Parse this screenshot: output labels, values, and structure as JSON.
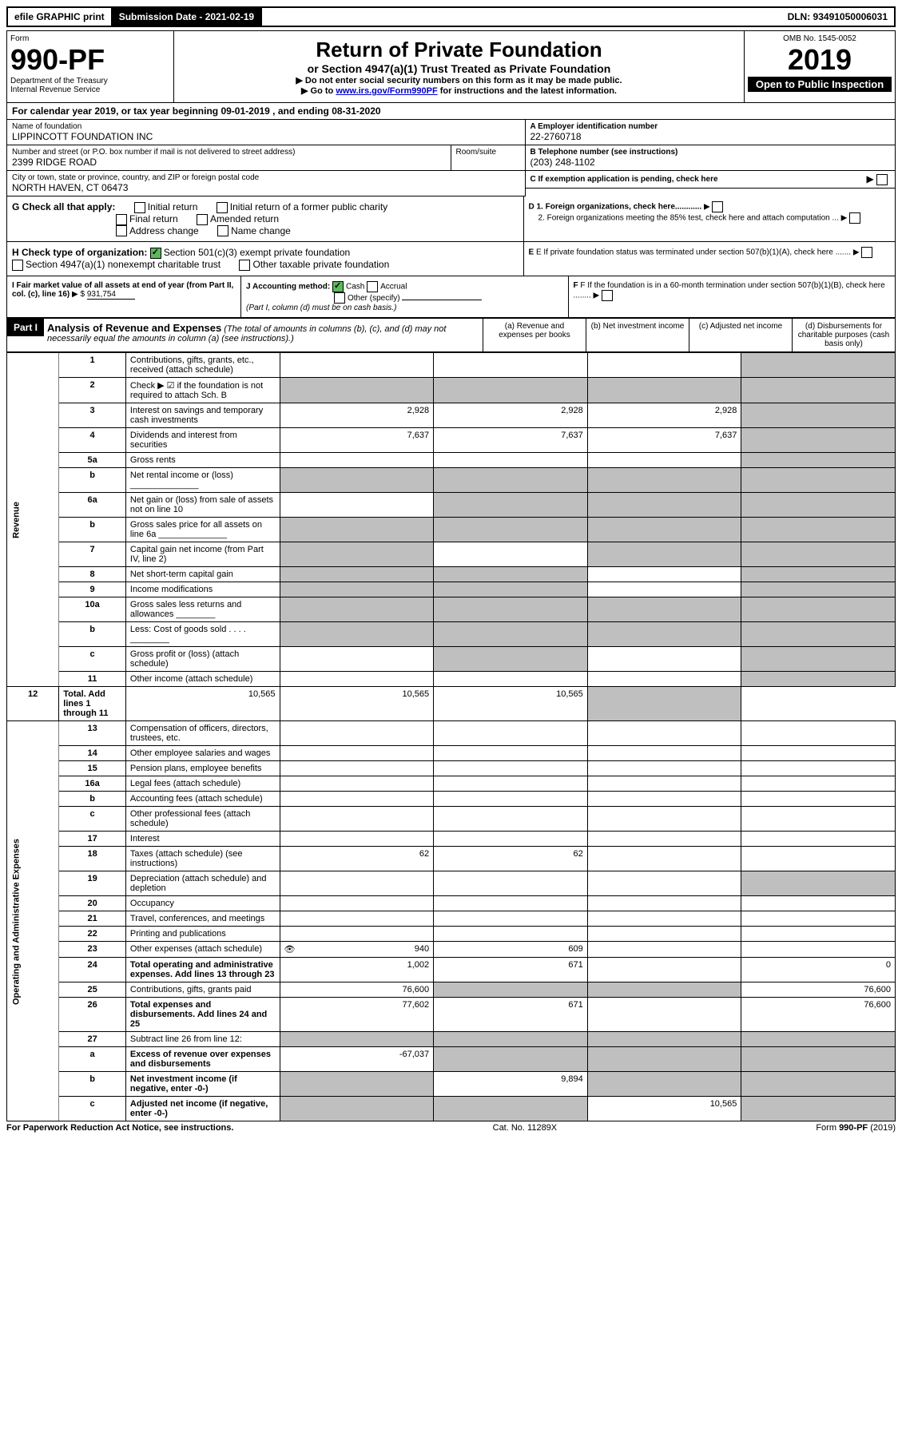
{
  "topbar": {
    "efile": "efile GRAPHIC print",
    "submission_label": "Submission Date - 2021-02-19",
    "dln_label": "DLN: 93491050006031"
  },
  "header": {
    "form_label": "Form",
    "form_number": "990-PF",
    "dept": "Department of the Treasury",
    "irs": "Internal Revenue Service",
    "title": "Return of Private Foundation",
    "subtitle": "or Section 4947(a)(1) Trust Treated as Private Foundation",
    "note1": "▶ Do not enter social security numbers on this form as it may be made public.",
    "note2_prefix": "▶ Go to ",
    "note2_link": "www.irs.gov/Form990PF",
    "note2_suffix": " for instructions and the latest information.",
    "omb": "OMB No. 1545-0052",
    "year": "2019",
    "open": "Open to Public Inspection"
  },
  "period": {
    "text_prefix": "For calendar year 2019, or tax year beginning ",
    "begin": "09-01-2019",
    "text_mid": " , and ending ",
    "end": "08-31-2020"
  },
  "ident": {
    "name_label": "Name of foundation",
    "name": "LIPPINCOTT FOUNDATION INC",
    "ein_label": "A Employer identification number",
    "ein": "22-2760718",
    "addr_label": "Number and street (or P.O. box number if mail is not delivered to street address)",
    "addr": "2399 RIDGE ROAD",
    "room_label": "Room/suite",
    "phone_label": "B Telephone number (see instructions)",
    "phone": "(203) 248-1102",
    "city_label": "City or town, state or province, country, and ZIP or foreign postal code",
    "city": "NORTH HAVEN, CT  06473",
    "c_label": "C If exemption application is pending, check here"
  },
  "checks": {
    "g_label": "G Check all that apply:",
    "g_items": [
      "Initial return",
      "Initial return of a former public charity",
      "Final return",
      "Amended return",
      "Address change",
      "Name change"
    ],
    "d1": "D 1. Foreign organizations, check here............",
    "d2": "2. Foreign organizations meeting the 85% test, check here and attach computation ...",
    "h_label": "H Check type of organization:",
    "h_501c3": "Section 501(c)(3) exempt private foundation",
    "h_4947": "Section 4947(a)(1) nonexempt charitable trust",
    "h_other": "Other taxable private foundation",
    "e_label": "E If private foundation status was terminated under section 507(b)(1)(A), check here .......",
    "i_label": "I Fair market value of all assets at end of year (from Part II, col. (c), line 16)",
    "i_value": "931,754",
    "j_label": "J Accounting method:",
    "j_cash": "Cash",
    "j_accrual": "Accrual",
    "j_other": "Other (specify)",
    "j_note": "(Part I, column (d) must be on cash basis.)",
    "f_label": "F If the foundation is in a 60-month termination under section 507(b)(1)(B), check here ........"
  },
  "part1": {
    "label": "Part I",
    "title": "Analysis of Revenue and Expenses",
    "title_note": "(The total of amounts in columns (b), (c), and (d) may not necessarily equal the amounts in column (a) (see instructions).)",
    "col_a": "(a) Revenue and expenses per books",
    "col_b": "(b) Net investment income",
    "col_c": "(c) Adjusted net income",
    "col_d": "(d) Disbursements for charitable purposes (cash basis only)"
  },
  "sections": {
    "revenue": "Revenue",
    "expenses": "Operating and Administrative Expenses"
  },
  "lines": [
    {
      "no": "1",
      "desc": "Contributions, gifts, grants, etc., received (attach schedule)",
      "a": "",
      "b": "",
      "c": "",
      "d": "",
      "d_shade": true
    },
    {
      "no": "2",
      "desc": "Check ▶ ☑ if the foundation is not required to attach Sch. B",
      "a_shade": true,
      "b_shade": true,
      "c_shade": true,
      "d_shade": true
    },
    {
      "no": "3",
      "desc": "Interest on savings and temporary cash investments",
      "a": "2,928",
      "b": "2,928",
      "c": "2,928",
      "d_shade": true
    },
    {
      "no": "4",
      "desc": "Dividends and interest from securities",
      "a": "7,637",
      "b": "7,637",
      "c": "7,637",
      "d_shade": true
    },
    {
      "no": "5a",
      "desc": "Gross rents",
      "a": "",
      "b": "",
      "c": "",
      "d_shade": true
    },
    {
      "no": "b",
      "desc": "Net rental income or (loss) ______________",
      "a_shade": true,
      "b_shade": true,
      "c_shade": true,
      "d_shade": true
    },
    {
      "no": "6a",
      "desc": "Net gain or (loss) from sale of assets not on line 10",
      "a": "",
      "b_shade": true,
      "c_shade": true,
      "d_shade": true
    },
    {
      "no": "b",
      "desc": "Gross sales price for all assets on line 6a ______________",
      "a_shade": true,
      "b_shade": true,
      "c_shade": true,
      "d_shade": true
    },
    {
      "no": "7",
      "desc": "Capital gain net income (from Part IV, line 2)",
      "a_shade": true,
      "b": "",
      "c_shade": true,
      "d_shade": true
    },
    {
      "no": "8",
      "desc": "Net short-term capital gain",
      "a_shade": true,
      "b_shade": true,
      "c": "",
      "d_shade": true
    },
    {
      "no": "9",
      "desc": "Income modifications",
      "a_shade": true,
      "b_shade": true,
      "c": "",
      "d_shade": true
    },
    {
      "no": "10a",
      "desc": "Gross sales less returns and allowances ________",
      "a_shade": true,
      "b_shade": true,
      "c_shade": true,
      "d_shade": true
    },
    {
      "no": "b",
      "desc": "Less: Cost of goods sold  . . . . ________",
      "a_shade": true,
      "b_shade": true,
      "c_shade": true,
      "d_shade": true
    },
    {
      "no": "c",
      "desc": "Gross profit or (loss) (attach schedule)",
      "a": "",
      "b_shade": true,
      "c": "",
      "d_shade": true
    },
    {
      "no": "11",
      "desc": "Other income (attach schedule)",
      "a": "",
      "b": "",
      "c": "",
      "d_shade": true
    },
    {
      "no": "12",
      "desc": "Total. Add lines 1 through 11",
      "bold": true,
      "a": "10,565",
      "b": "10,565",
      "c": "10,565",
      "d_shade": true
    }
  ],
  "exp_lines": [
    {
      "no": "13",
      "desc": "Compensation of officers, directors, trustees, etc.",
      "a": "",
      "b": "",
      "c": "",
      "d": ""
    },
    {
      "no": "14",
      "desc": "Other employee salaries and wages",
      "a": "",
      "b": "",
      "c": "",
      "d": ""
    },
    {
      "no": "15",
      "desc": "Pension plans, employee benefits",
      "a": "",
      "b": "",
      "c": "",
      "d": ""
    },
    {
      "no": "16a",
      "desc": "Legal fees (attach schedule)",
      "a": "",
      "b": "",
      "c": "",
      "d": ""
    },
    {
      "no": "b",
      "desc": "Accounting fees (attach schedule)",
      "a": "",
      "b": "",
      "c": "",
      "d": ""
    },
    {
      "no": "c",
      "desc": "Other professional fees (attach schedule)",
      "a": "",
      "b": "",
      "c": "",
      "d": ""
    },
    {
      "no": "17",
      "desc": "Interest",
      "a": "",
      "b": "",
      "c": "",
      "d": ""
    },
    {
      "no": "18",
      "desc": "Taxes (attach schedule) (see instructions)",
      "a": "62",
      "b": "62",
      "c": "",
      "d": ""
    },
    {
      "no": "19",
      "desc": "Depreciation (attach schedule) and depletion",
      "a": "",
      "b": "",
      "c": "",
      "d_shade": true
    },
    {
      "no": "20",
      "desc": "Occupancy",
      "a": "",
      "b": "",
      "c": "",
      "d": ""
    },
    {
      "no": "21",
      "desc": "Travel, conferences, and meetings",
      "a": "",
      "b": "",
      "c": "",
      "d": ""
    },
    {
      "no": "22",
      "desc": "Printing and publications",
      "a": "",
      "b": "",
      "c": "",
      "d": ""
    },
    {
      "no": "23",
      "desc": "Other expenses (attach schedule)",
      "a": "940",
      "a_icon": true,
      "b": "609",
      "c": "",
      "d": ""
    },
    {
      "no": "24",
      "desc": "Total operating and administrative expenses. Add lines 13 through 23",
      "bold": true,
      "a": "1,002",
      "b": "671",
      "c": "",
      "d": "0"
    },
    {
      "no": "25",
      "desc": "Contributions, gifts, grants paid",
      "a": "76,600",
      "b_shade": true,
      "c_shade": true,
      "d": "76,600"
    },
    {
      "no": "26",
      "desc": "Total expenses and disbursements. Add lines 24 and 25",
      "bold": true,
      "a": "77,602",
      "b": "671",
      "c": "",
      "d": "76,600"
    },
    {
      "no": "27",
      "desc": "Subtract line 26 from line 12:",
      "a_shade": true,
      "b_shade": true,
      "c_shade": true,
      "d_shade": true
    },
    {
      "no": "a",
      "desc": "Excess of revenue over expenses and disbursements",
      "bold": true,
      "a": "-67,037",
      "b_shade": true,
      "c_shade": true,
      "d_shade": true
    },
    {
      "no": "b",
      "desc": "Net investment income (if negative, enter -0-)",
      "bold": true,
      "a_shade": true,
      "b": "9,894",
      "c_shade": true,
      "d_shade": true
    },
    {
      "no": "c",
      "desc": "Adjusted net income (if negative, enter -0-)",
      "bold": true,
      "a_shade": true,
      "b_shade": true,
      "c": "10,565",
      "d_shade": true
    }
  ],
  "footer": {
    "left": "For Paperwork Reduction Act Notice, see instructions.",
    "center": "Cat. No. 11289X",
    "right": "Form 990-PF (2019)"
  }
}
